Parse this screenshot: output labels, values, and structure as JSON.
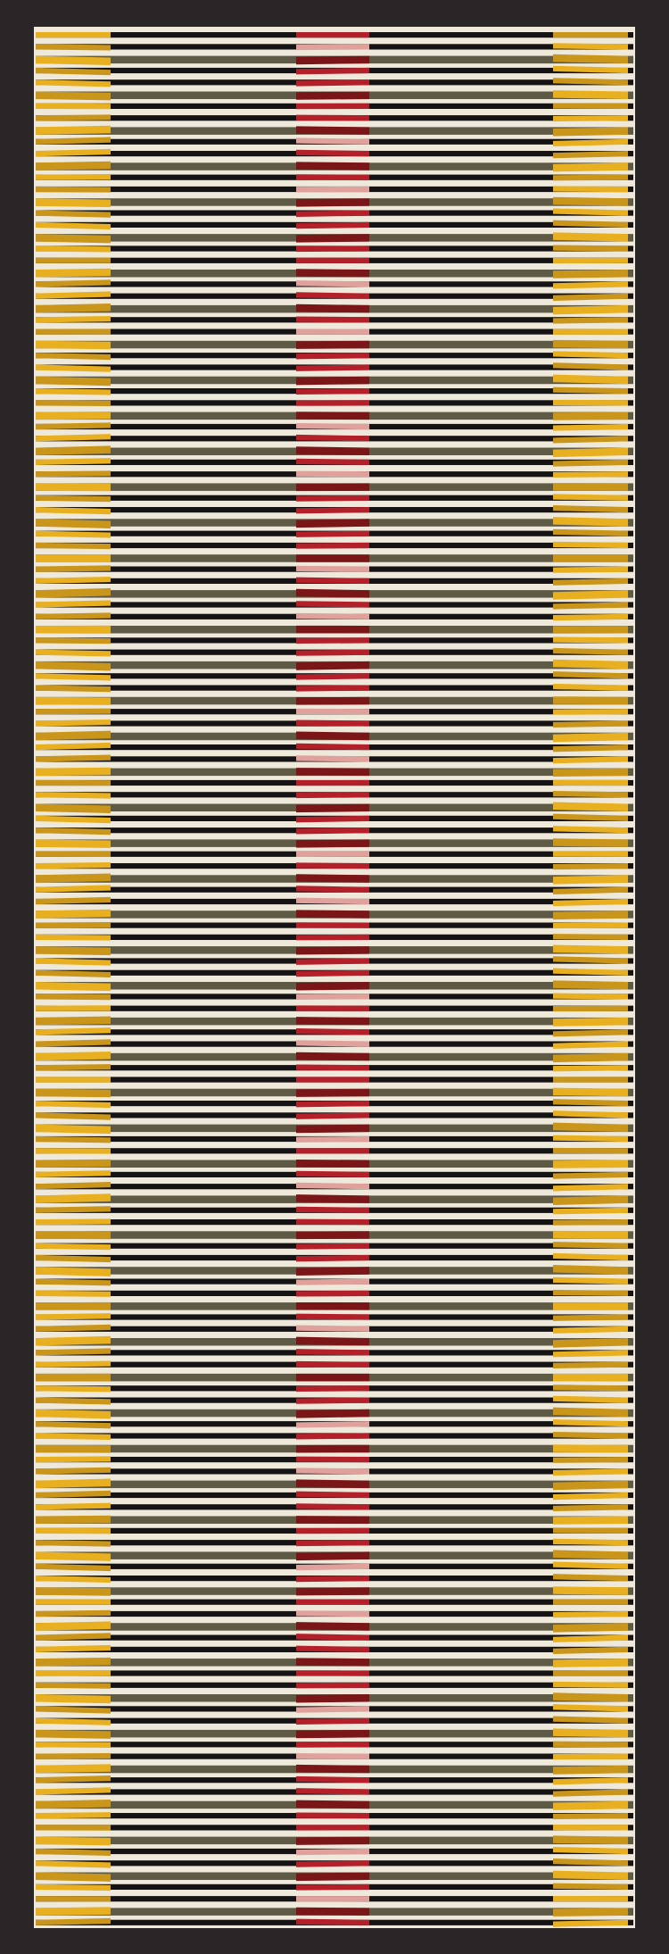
{
  "artwork": {
    "colors": {
      "frame": "#2a2526",
      "canvas": "#efe9dc",
      "black_stripe": "#161315",
      "olive_band": "#5f5a45",
      "yellow_accent": "#e8b020",
      "yellow_shadow": "#c9951a",
      "red_accent": "#b3202a",
      "red_dark": "#7a1518",
      "red_light": "#e0a09c"
    },
    "stripe_pattern": [
      "black",
      "black",
      "olive"
    ],
    "accent_segments": [
      "yellow-left",
      "red-center",
      "yellow-right"
    ]
  }
}
